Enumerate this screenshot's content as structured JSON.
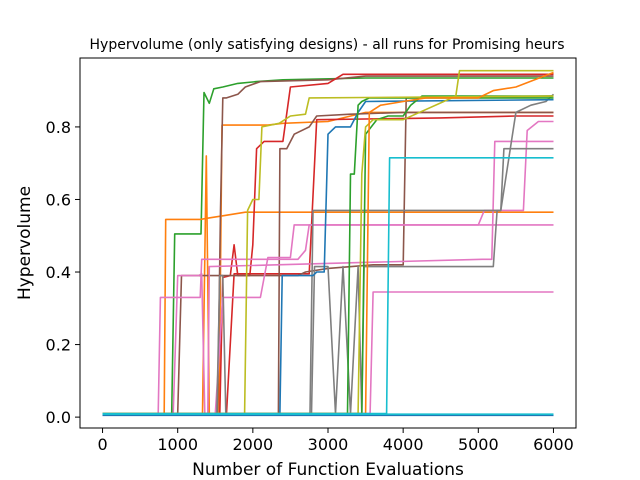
{
  "chart_data": {
    "type": "line",
    "title": "Hypervolume (only satisfying designs) - all runs for Promising heurs",
    "xlabel": "Number of Function Evaluations",
    "ylabel": "Hypervolume",
    "xlim": [
      -300,
      6300
    ],
    "ylim": [
      -0.03,
      0.99
    ],
    "xticks": [
      0,
      1000,
      2000,
      3000,
      4000,
      5000,
      6000
    ],
    "yticks": [
      0.0,
      0.2,
      0.4,
      0.6,
      0.8
    ],
    "ytick_labels": [
      "0.0",
      "0.2",
      "0.4",
      "0.6",
      "0.8"
    ],
    "grid": false,
    "legend": "none",
    "series": [
      {
        "color": "#2ca02c",
        "points": [
          [
            0,
            0.01
          ],
          [
            920,
            0.01
          ],
          [
            960,
            0.505
          ],
          [
            1310,
            0.505
          ],
          [
            1350,
            0.895
          ],
          [
            1420,
            0.865
          ],
          [
            1480,
            0.905
          ],
          [
            1600,
            0.91
          ],
          [
            1800,
            0.92
          ],
          [
            2050,
            0.925
          ],
          [
            2400,
            0.93
          ],
          [
            3500,
            0.935
          ],
          [
            6000,
            0.935
          ]
        ]
      },
      {
        "color": "#ff7f0e",
        "points": [
          [
            0,
            0.01
          ],
          [
            820,
            0.01
          ],
          [
            840,
            0.545
          ],
          [
            1300,
            0.545
          ],
          [
            1450,
            0.55
          ],
          [
            1600,
            0.555
          ],
          [
            1900,
            0.565
          ],
          [
            6000,
            0.565
          ]
        ]
      },
      {
        "color": "#ff7f0e",
        "points": [
          [
            0,
            0.01
          ],
          [
            1330,
            0.01
          ],
          [
            1380,
            0.72
          ],
          [
            1420,
            0.01
          ],
          [
            1550,
            0.01
          ],
          [
            1590,
            0.805
          ],
          [
            2200,
            0.805
          ],
          [
            2400,
            0.81
          ],
          [
            3000,
            0.815
          ],
          [
            3500,
            0.84
          ],
          [
            6000,
            0.84
          ]
        ]
      },
      {
        "color": "#8c564b",
        "points": [
          [
            0,
            0.01
          ],
          [
            1530,
            0.01
          ],
          [
            1570,
            0.57
          ],
          [
            1600,
            0.88
          ],
          [
            1650,
            0.88
          ],
          [
            1800,
            0.89
          ],
          [
            1900,
            0.91
          ],
          [
            2100,
            0.925
          ],
          [
            3000,
            0.93
          ],
          [
            3500,
            0.94
          ],
          [
            6000,
            0.94
          ]
        ]
      },
      {
        "color": "#d62728",
        "points": [
          [
            0,
            0.01
          ],
          [
            1560,
            0.01
          ],
          [
            1600,
            0.385
          ],
          [
            1700,
            0.39
          ],
          [
            1750,
            0.475
          ],
          [
            1800,
            0.39
          ],
          [
            1960,
            0.39
          ],
          [
            2000,
            0.475
          ],
          [
            2050,
            0.74
          ],
          [
            2150,
            0.76
          ],
          [
            2400,
            0.76
          ],
          [
            2500,
            0.91
          ],
          [
            3000,
            0.92
          ],
          [
            3200,
            0.945
          ],
          [
            6000,
            0.945
          ]
        ]
      },
      {
        "color": "#d62728",
        "points": [
          [
            0,
            0.01
          ],
          [
            1650,
            0.01
          ],
          [
            1750,
            0.395
          ],
          [
            2750,
            0.395
          ],
          [
            2850,
            0.82
          ],
          [
            4500,
            0.825
          ],
          [
            5500,
            0.83
          ],
          [
            6000,
            0.83
          ]
        ]
      },
      {
        "color": "#8c564b",
        "points": [
          [
            0,
            0.01
          ],
          [
            2340,
            0.01
          ],
          [
            2360,
            0.74
          ],
          [
            2450,
            0.74
          ],
          [
            2550,
            0.78
          ],
          [
            2750,
            0.8
          ],
          [
            2850,
            0.83
          ],
          [
            3300,
            0.835
          ],
          [
            4000,
            0.84
          ],
          [
            6000,
            0.84
          ]
        ]
      },
      {
        "color": "#8c564b",
        "points": [
          [
            0,
            0.01
          ],
          [
            1000,
            0.01
          ],
          [
            1050,
            0.39
          ],
          [
            2600,
            0.39
          ],
          [
            2700,
            0.4
          ],
          [
            3000,
            0.41
          ],
          [
            3600,
            0.42
          ],
          [
            4000,
            0.42
          ],
          [
            4040,
            0.88
          ],
          [
            6000,
            0.885
          ]
        ]
      },
      {
        "color": "#e377c2",
        "points": [
          [
            0,
            0.01
          ],
          [
            740,
            0.01
          ],
          [
            770,
            0.33
          ],
          [
            1300,
            0.33
          ],
          [
            1320,
            0.435
          ],
          [
            1400,
            0.435
          ],
          [
            2600,
            0.435
          ],
          [
            2700,
            0.46
          ],
          [
            2750,
            0.53
          ],
          [
            5000,
            0.53
          ],
          [
            6000,
            0.53
          ]
        ]
      },
      {
        "color": "#e377c2",
        "points": [
          [
            0,
            0.01
          ],
          [
            940,
            0.01
          ],
          [
            1000,
            0.39
          ],
          [
            1280,
            0.39
          ],
          [
            1320,
            0.395
          ],
          [
            1360,
            0.01
          ],
          [
            1400,
            0.01
          ],
          [
            1420,
            0.415
          ],
          [
            5050,
            0.435
          ],
          [
            5180,
            0.435
          ],
          [
            5220,
            0.76
          ],
          [
            5800,
            0.76
          ],
          [
            6000,
            0.76
          ]
        ]
      },
      {
        "color": "#e377c2",
        "points": [
          [
            0,
            0.01
          ],
          [
            3560,
            0.01
          ],
          [
            3600,
            0.345
          ],
          [
            6000,
            0.345
          ]
        ]
      },
      {
        "color": "#e377c2",
        "points": [
          [
            0,
            0.01
          ],
          [
            1500,
            0.01
          ],
          [
            1600,
            0.33
          ],
          [
            2100,
            0.33
          ],
          [
            2200,
            0.44
          ],
          [
            2500,
            0.44
          ],
          [
            2550,
            0.53
          ],
          [
            5000,
            0.53
          ],
          [
            5080,
            0.57
          ],
          [
            5600,
            0.57
          ],
          [
            5650,
            0.79
          ],
          [
            5800,
            0.815
          ],
          [
            6000,
            0.815
          ]
        ]
      },
      {
        "color": "#7f7f7f",
        "points": [
          [
            0,
            0.01
          ],
          [
            1520,
            0.01
          ],
          [
            1560,
            0.39
          ],
          [
            1600,
            0.39
          ],
          [
            1640,
            0.01
          ],
          [
            2780,
            0.01
          ],
          [
            2820,
            0.415
          ],
          [
            3000,
            0.415
          ],
          [
            3100,
            0.01
          ],
          [
            3200,
            0.415
          ],
          [
            3300,
            0.01
          ],
          [
            3400,
            0.415
          ],
          [
            3450,
            0.01
          ],
          [
            3480,
            0.415
          ],
          [
            5200,
            0.415
          ],
          [
            5250,
            0.57
          ],
          [
            5300,
            0.57
          ],
          [
            5340,
            0.74
          ],
          [
            6000,
            0.74
          ]
        ]
      },
      {
        "color": "#7f7f7f",
        "points": [
          [
            0,
            0.01
          ],
          [
            2760,
            0.01
          ],
          [
            2800,
            0.57
          ],
          [
            4500,
            0.57
          ],
          [
            5150,
            0.57
          ],
          [
            5300,
            0.57
          ],
          [
            5500,
            0.84
          ],
          [
            5700,
            0.86
          ],
          [
            5900,
            0.87
          ],
          [
            6000,
            0.89
          ]
        ]
      },
      {
        "color": "#1f77b4",
        "points": [
          [
            0,
            0.01
          ],
          [
            2360,
            0.01
          ],
          [
            2390,
            0.39
          ],
          [
            2800,
            0.39
          ],
          [
            2850,
            0.4
          ],
          [
            2950,
            0.4
          ],
          [
            3000,
            0.78
          ],
          [
            3100,
            0.8
          ],
          [
            3300,
            0.8
          ],
          [
            3400,
            0.84
          ],
          [
            3500,
            0.87
          ],
          [
            6000,
            0.875
          ]
        ]
      },
      {
        "color": "#2ca02c",
        "points": [
          [
            0,
            0.01
          ],
          [
            3260,
            0.01
          ],
          [
            3300,
            0.67
          ],
          [
            3350,
            0.67
          ],
          [
            3400,
            0.86
          ],
          [
            3450,
            0.87
          ],
          [
            3550,
            0.88
          ],
          [
            6000,
            0.88
          ]
        ]
      },
      {
        "color": "#2ca02c",
        "points": [
          [
            0,
            0.01
          ],
          [
            3450,
            0.01
          ],
          [
            3500,
            0.78
          ],
          [
            3650,
            0.82
          ],
          [
            3800,
            0.83
          ],
          [
            4000,
            0.83
          ],
          [
            4100,
            0.86
          ],
          [
            4250,
            0.885
          ],
          [
            6000,
            0.885
          ]
        ]
      },
      {
        "color": "#bcbd22",
        "points": [
          [
            0,
            0.01
          ],
          [
            1890,
            0.01
          ],
          [
            1930,
            0.57
          ],
          [
            2000,
            0.6
          ],
          [
            2080,
            0.6
          ],
          [
            2120,
            0.8
          ],
          [
            2350,
            0.81
          ],
          [
            2500,
            0.83
          ],
          [
            2700,
            0.835
          ],
          [
            2750,
            0.88
          ],
          [
            6000,
            0.885
          ]
        ]
      },
      {
        "color": "#bcbd22",
        "points": [
          [
            0,
            0.01
          ],
          [
            3400,
            0.01
          ],
          [
            3450,
            0.67
          ],
          [
            3500,
            0.8
          ],
          [
            3600,
            0.82
          ],
          [
            4000,
            0.82
          ],
          [
            4700,
            0.885
          ],
          [
            4750,
            0.955
          ],
          [
            6000,
            0.955
          ]
        ]
      },
      {
        "color": "#ff7f0e",
        "points": [
          [
            0,
            0.01
          ],
          [
            3500,
            0.01
          ],
          [
            3550,
            0.84
          ],
          [
            3700,
            0.86
          ],
          [
            4000,
            0.87
          ],
          [
            4300,
            0.88
          ],
          [
            5000,
            0.88
          ],
          [
            5200,
            0.9
          ],
          [
            5500,
            0.91
          ],
          [
            6000,
            0.95
          ]
        ]
      },
      {
        "color": "#17becf",
        "points": [
          [
            0,
            0.01
          ],
          [
            3780,
            0.01
          ],
          [
            3820,
            0.715
          ],
          [
            6000,
            0.715
          ]
        ]
      },
      {
        "color": "#1f77b4",
        "points": [
          [
            0,
            0.005
          ],
          [
            6000,
            0.005
          ]
        ]
      },
      {
        "color": "#17becf",
        "points": [
          [
            0,
            0.008
          ],
          [
            6000,
            0.008
          ]
        ]
      }
    ]
  }
}
